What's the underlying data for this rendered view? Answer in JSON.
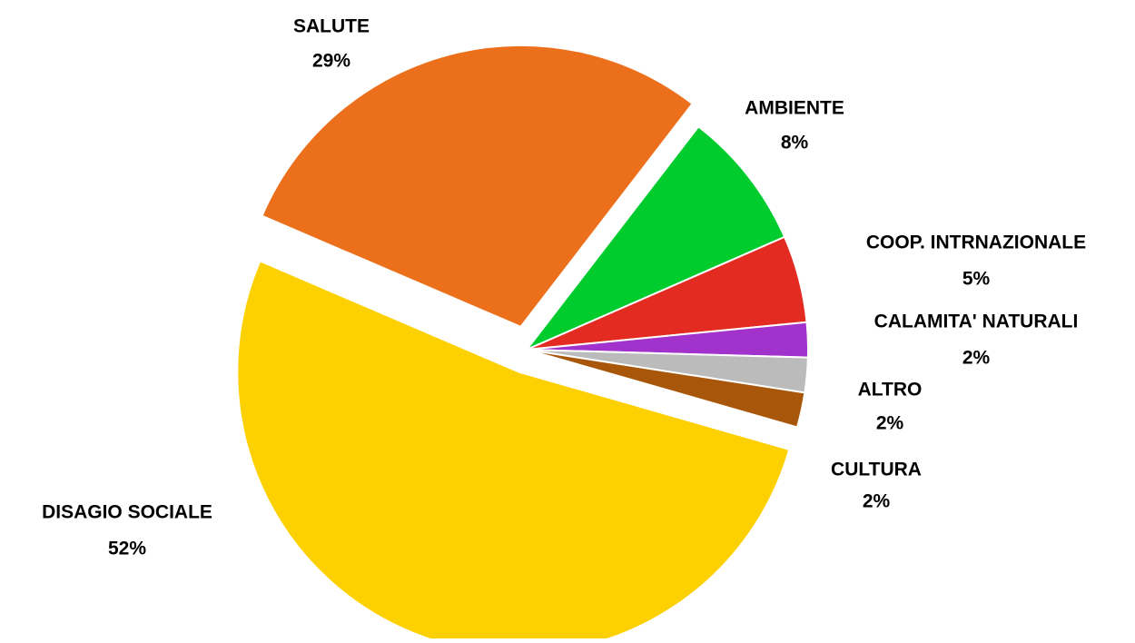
{
  "chart_data": {
    "type": "pie",
    "categories": [
      "DISAGIO SOCIALE",
      "SALUTE",
      "AMBIENTE",
      "COOP. INTRNAZIONALE",
      "CALAMITA' NATURALI",
      "ALTRO",
      "CULTURA"
    ],
    "values": [
      52,
      29,
      8,
      5,
      2,
      2,
      2
    ],
    "value_labels": [
      "52%",
      "29%",
      "8%",
      "5%",
      "2%",
      "2%",
      "2%"
    ],
    "colors": [
      "#fdd000",
      "#ec701c",
      "#00cc2e",
      "#e32b22",
      "#a133cc",
      "#bbbbbb",
      "#a8560a"
    ]
  }
}
